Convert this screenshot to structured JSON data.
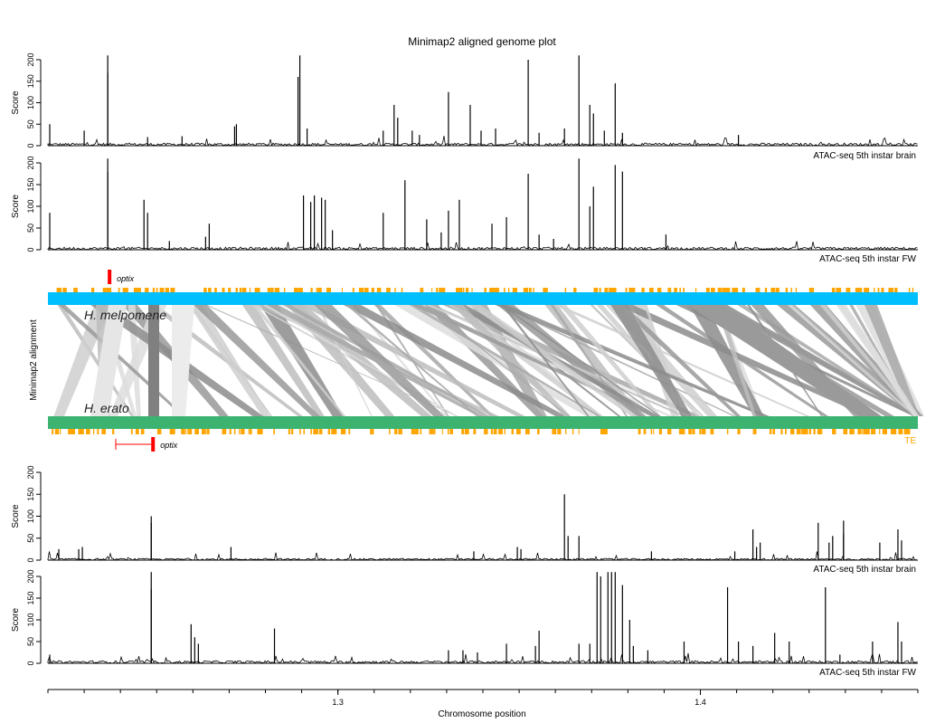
{
  "chart_data": {
    "type": "line",
    "title": "Minimap2 aligned genome plot",
    "xlabel": "Chromosome position",
    "x_ticks": [
      "1.3",
      "1.4"
    ],
    "x_tick_values": [
      1.3,
      1.4
    ],
    "xlim": [
      1.22,
      1.46
    ],
    "score_axis": {
      "label": "Score",
      "ylim": [
        0,
        200
      ],
      "ticks": [
        "0",
        "50",
        "100",
        "150",
        "200"
      ]
    },
    "panels": [
      {
        "name": "ATAC-seq 5th instar brain",
        "genome": "H. melpomene",
        "peaks": [
          [
            1.2205,
            50
          ],
          [
            1.23,
            35
          ],
          [
            1.2365,
            210
          ],
          [
            1.2365,
            170
          ],
          [
            1.2475,
            20
          ],
          [
            1.257,
            22
          ],
          [
            1.2715,
            45
          ],
          [
            1.272,
            50
          ],
          [
            1.2895,
            210
          ],
          [
            1.289,
            160
          ],
          [
            1.2915,
            40
          ],
          [
            1.3125,
            35
          ],
          [
            1.3155,
            95
          ],
          [
            1.3165,
            65
          ],
          [
            1.3205,
            35
          ],
          [
            1.3225,
            25
          ],
          [
            1.3305,
            125
          ],
          [
            1.3365,
            95
          ],
          [
            1.3395,
            35
          ],
          [
            1.3435,
            40
          ],
          [
            1.3525,
            200
          ],
          [
            1.3555,
            30
          ],
          [
            1.3625,
            40
          ],
          [
            1.3665,
            210
          ],
          [
            1.3695,
            95
          ],
          [
            1.3705,
            75
          ],
          [
            1.3735,
            35
          ],
          [
            1.3765,
            145
          ],
          [
            1.3785,
            30
          ],
          [
            1.4105,
            25
          ]
        ],
        "noise": 6,
        "color": "#000000"
      },
      {
        "name": "ATAC-seq 5th instar FW",
        "genome": "H. melpomene",
        "peaks": [
          [
            1.2205,
            85
          ],
          [
            1.2365,
            210
          ],
          [
            1.2365,
            180
          ],
          [
            1.2465,
            115
          ],
          [
            1.2475,
            85
          ],
          [
            1.2535,
            20
          ],
          [
            1.2635,
            30
          ],
          [
            1.2645,
            60
          ],
          [
            1.2905,
            125
          ],
          [
            1.2935,
            125
          ],
          [
            1.2925,
            110
          ],
          [
            1.2955,
            120
          ],
          [
            1.2965,
            115
          ],
          [
            1.2985,
            45
          ],
          [
            1.3125,
            85
          ],
          [
            1.3185,
            160
          ],
          [
            1.3245,
            70
          ],
          [
            1.3285,
            40
          ],
          [
            1.3305,
            90
          ],
          [
            1.3335,
            115
          ],
          [
            1.3425,
            60
          ],
          [
            1.3465,
            75
          ],
          [
            1.3525,
            175
          ],
          [
            1.3555,
            35
          ],
          [
            1.3595,
            25
          ],
          [
            1.3665,
            210
          ],
          [
            1.3695,
            100
          ],
          [
            1.3705,
            145
          ],
          [
            1.3765,
            195
          ],
          [
            1.3785,
            180
          ],
          [
            1.3905,
            35
          ]
        ],
        "noise": 6,
        "color": "#000000"
      },
      {
        "name": "ATAC-seq 5th instar brain",
        "genome": "H. erato",
        "peaks": [
          [
            1.223,
            25
          ],
          [
            1.2285,
            25
          ],
          [
            1.2295,
            30
          ],
          [
            1.2485,
            100
          ],
          [
            1.2485,
            85
          ],
          [
            1.2705,
            30
          ],
          [
            1.3375,
            20
          ],
          [
            1.3495,
            30
          ],
          [
            1.3505,
            25
          ],
          [
            1.3625,
            150
          ],
          [
            1.3635,
            55
          ],
          [
            1.3665,
            55
          ],
          [
            1.3865,
            20
          ],
          [
            1.4095,
            20
          ],
          [
            1.4145,
            70
          ],
          [
            1.4155,
            30
          ],
          [
            1.4165,
            40
          ],
          [
            1.4325,
            85
          ],
          [
            1.4355,
            40
          ],
          [
            1.4365,
            55
          ],
          [
            1.4395,
            90
          ],
          [
            1.4395,
            60
          ],
          [
            1.4495,
            40
          ],
          [
            1.4545,
            70
          ],
          [
            1.4555,
            45
          ]
        ],
        "noise": 4,
        "color": "#000000"
      },
      {
        "name": "ATAC-seq 5th instar FW",
        "genome": "H. erato",
        "peaks": [
          [
            1.2205,
            20
          ],
          [
            1.2485,
            210
          ],
          [
            1.2485,
            170
          ],
          [
            1.2595,
            90
          ],
          [
            1.2605,
            60
          ],
          [
            1.2615,
            45
          ],
          [
            1.2825,
            80
          ],
          [
            1.3305,
            30
          ],
          [
            1.3345,
            30
          ],
          [
            1.3385,
            25
          ],
          [
            1.3465,
            45
          ],
          [
            1.3555,
            75
          ],
          [
            1.3545,
            40
          ],
          [
            1.3665,
            45
          ],
          [
            1.3695,
            45
          ],
          [
            1.3715,
            210
          ],
          [
            1.3725,
            200
          ],
          [
            1.3745,
            210
          ],
          [
            1.3755,
            210
          ],
          [
            1.3765,
            210
          ],
          [
            1.3785,
            180
          ],
          [
            1.3805,
            100
          ],
          [
            1.3815,
            40
          ],
          [
            1.3855,
            30
          ],
          [
            1.3955,
            50
          ],
          [
            1.4075,
            175
          ],
          [
            1.4105,
            50
          ],
          [
            1.4145,
            40
          ],
          [
            1.4205,
            70
          ],
          [
            1.4245,
            50
          ],
          [
            1.4345,
            175
          ],
          [
            1.4385,
            20
          ],
          [
            1.4475,
            50
          ],
          [
            1.4545,
            95
          ],
          [
            1.4555,
            50
          ]
        ],
        "noise": 6,
        "color": "#000000"
      }
    ],
    "alignment": {
      "axis_label": "Minimap2 alignment",
      "top_genome": {
        "name": "H. melpomene",
        "color": "#00BFFF"
      },
      "bottom_genome": {
        "name": "H. erato",
        "color": "#3CB371"
      },
      "te_label": "TE",
      "te_color": "#FFA500",
      "gene_label": "optix",
      "gene_color": "#FF0000",
      "gene_top": [
        1.2365,
        1.2365
      ],
      "gene_bottom": [
        1.2375,
        1.2485
      ]
    },
    "legend": "none",
    "grid": false
  }
}
